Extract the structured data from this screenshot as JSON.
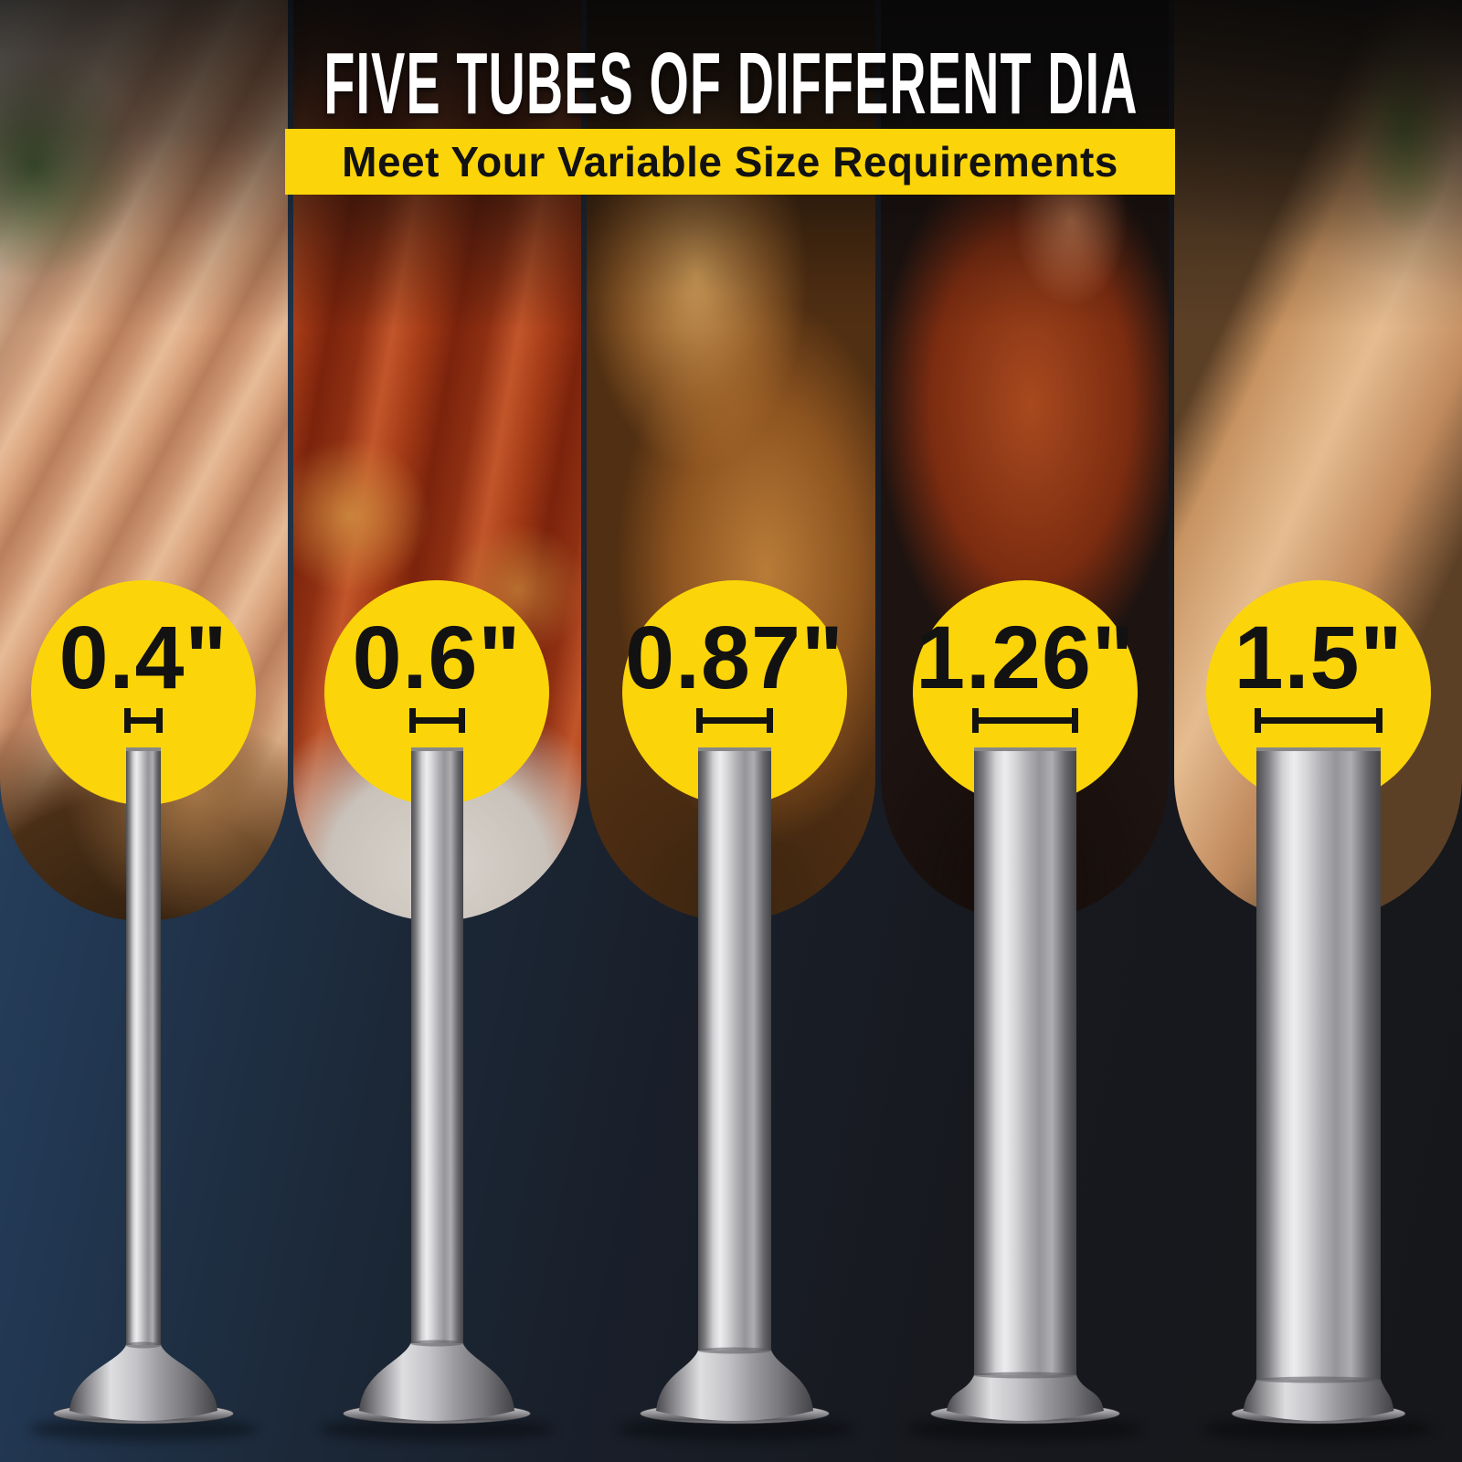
{
  "poster": {
    "title": "FIVE TUBES OF DIFFERENT DIA",
    "subtitle": "Meet Your Variable Size Requirements"
  },
  "tubes": [
    {
      "label": "0.4\"",
      "diameter_in": 0.4
    },
    {
      "label": "0.6\"",
      "diameter_in": 0.6
    },
    {
      "label": "0.87\"",
      "diameter_in": 0.87
    },
    {
      "label": "1.26\"",
      "diameter_in": 1.26
    },
    {
      "label": "1.5\"",
      "diameter_in": 1.5
    }
  ],
  "colors": {
    "accent_yellow": "#FBD40A",
    "title_white": "#FFFFFF",
    "label_black": "#121212",
    "background_navy": "#24395A",
    "background_black": "#17181C",
    "metal_silver": "#C8C8CC"
  }
}
